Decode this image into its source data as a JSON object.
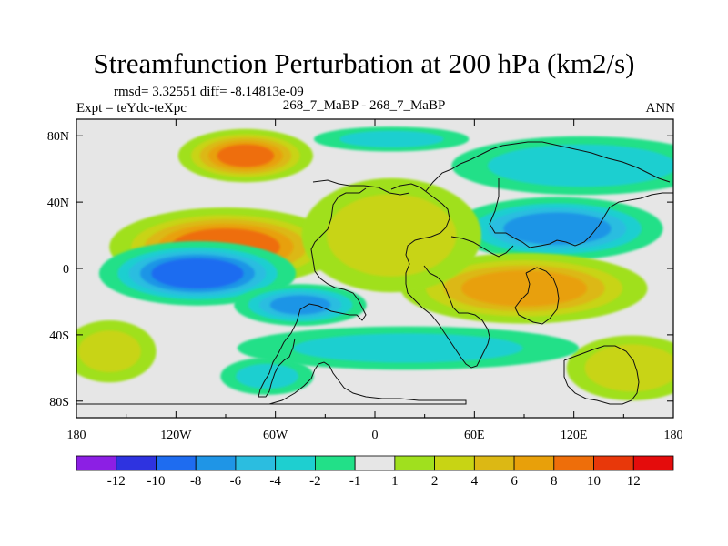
{
  "title": "Streamfunction Perturbation at 200 hPa (km2/s)",
  "stats": "rmsd= 3.32551 diff= -8.14813e-09",
  "experiment": "Expt = teYdc-teXpc",
  "cases": "268_7_MaBP - 268_7_MaBP",
  "season": "ANN",
  "chart_data": {
    "type": "contour-map",
    "projection": "cylindrical-equidistant",
    "x_ticks": [
      {
        "value": -180,
        "label": "180"
      },
      {
        "value": -120,
        "label": "120W"
      },
      {
        "value": -60,
        "label": "60W"
      },
      {
        "value": 0,
        "label": "0"
      },
      {
        "value": 60,
        "label": "60E"
      },
      {
        "value": 120,
        "label": "120E"
      },
      {
        "value": 180,
        "label": "180"
      }
    ],
    "y_ticks": [
      {
        "value": 80,
        "label": "80N"
      },
      {
        "value": 40,
        "label": "40N"
      },
      {
        "value": 0,
        "label": "0"
      },
      {
        "value": -40,
        "label": "40S"
      },
      {
        "value": -80,
        "label": "80S"
      }
    ],
    "xlim": [
      -180,
      180
    ],
    "ylim": [
      -90,
      90
    ],
    "colorbar": {
      "labels": [
        "-12",
        "-10",
        "-8",
        "-6",
        "-4",
        "-2",
        "-1",
        "1",
        "2",
        "4",
        "6",
        "8",
        "10",
        "12"
      ],
      "colors": [
        "#8c1fe4",
        "#2e33e0",
        "#1e6cf0",
        "#1f95e6",
        "#2bbde0",
        "#1ecfd0",
        "#22e088",
        "#e6e6e6",
        "#a0e01e",
        "#c8d414",
        "#dcb814",
        "#e8a00a",
        "#ee6e0a",
        "#e8380a",
        "#e40c0c"
      ]
    },
    "anomalies": [
      {
        "lon": -78,
        "lat": 68,
        "value": 8,
        "rx": 38,
        "ry": 15
      },
      {
        "lon": -90,
        "lat": 13,
        "value": 9,
        "rx": 65,
        "ry": 22
      },
      {
        "lon": -107,
        "lat": -3,
        "value": -9,
        "rx": 55,
        "ry": 18
      },
      {
        "lon": -45,
        "lat": -22,
        "value": -6,
        "rx": 38,
        "ry": 12
      },
      {
        "lon": 110,
        "lat": 24,
        "value": -7,
        "rx": 60,
        "ry": 18
      },
      {
        "lon": 125,
        "lat": 62,
        "value": -3,
        "rx": 80,
        "ry": 18
      },
      {
        "lon": 90,
        "lat": -12,
        "value": 7,
        "rx": 70,
        "ry": 20
      },
      {
        "lon": 10,
        "lat": 20,
        "value": 3,
        "rx": 55,
        "ry": 35
      },
      {
        "lon": 155,
        "lat": -60,
        "value": 3,
        "rx": 40,
        "ry": 20
      },
      {
        "lon": -65,
        "lat": -65,
        "value": -2,
        "rx": 30,
        "ry": 12
      },
      {
        "lon": 20,
        "lat": -48,
        "value": -2,
        "rx": 110,
        "ry": 14
      },
      {
        "lon": -160,
        "lat": -50,
        "value": 2,
        "rx": 30,
        "ry": 20
      },
      {
        "lon": 10,
        "lat": 78,
        "value": -2,
        "rx": 50,
        "ry": 8
      }
    ]
  }
}
